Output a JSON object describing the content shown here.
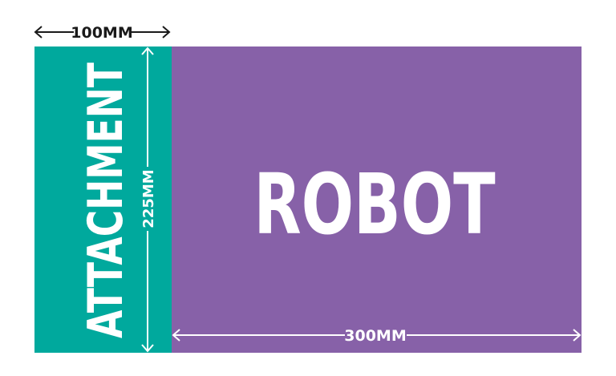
{
  "colors": {
    "attachment": "#00A99D",
    "robot": "#8761A8",
    "dimension_dark": "#1A1A1A",
    "dimension_light": "#FFFFFF"
  },
  "blocks": {
    "attachment_label": "ATTACHMENT",
    "robot_label": "ROBOT"
  },
  "dimensions": {
    "width_attachment": "100MM",
    "height": "225MM",
    "width_robot": "300MM"
  }
}
